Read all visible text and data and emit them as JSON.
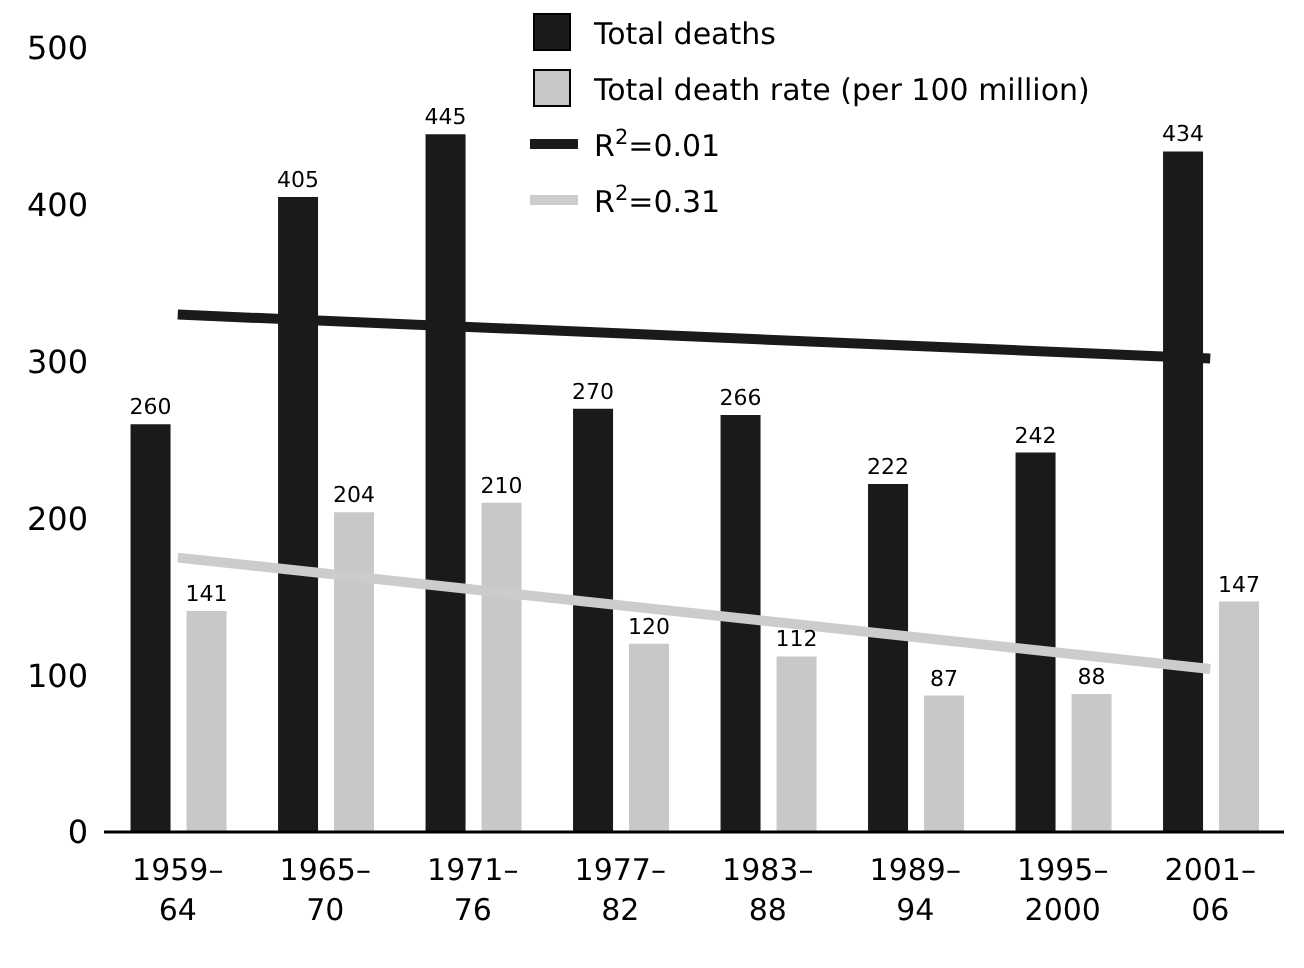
{
  "chart_data": {
    "type": "bar",
    "categories": [
      "1959–64",
      "1965–70",
      "1971–76",
      "1977–82",
      "1983–88",
      "1989–94",
      "1995–2000",
      "2001–06"
    ],
    "series": [
      {
        "name": "Total deaths",
        "color": "#1a1a1a",
        "values": [
          260,
          405,
          445,
          270,
          266,
          222,
          242,
          434
        ],
        "value_labels": [
          "260",
          "405",
          "445",
          "270",
          "266",
          "222",
          "242",
          "434"
        ]
      },
      {
        "name": "Total death rate (per 100 million)",
        "color": "#c8c8c8",
        "values": [
          141,
          204,
          210,
          120,
          112,
          87,
          88,
          147
        ],
        "value_labels": [
          "141",
          "204",
          "210",
          "120",
          "112",
          "87",
          "88",
          "147"
        ]
      },
      {
        "name": "R$^{2}$=0.01",
        "type": "line",
        "color": "#1a1a1a",
        "values": [
          330,
          null,
          null,
          null,
          null,
          null,
          null,
          302
        ]
      },
      {
        "name": "R$^{2}$=0.31",
        "type": "line",
        "color": "#cccccc",
        "values": [
          175,
          null,
          null,
          null,
          null,
          null,
          null,
          104
        ]
      }
    ],
    "ylim": [
      0,
      500
    ],
    "yticks": [
      0,
      100,
      200,
      300,
      400,
      500
    ],
    "grid": false,
    "legend": "top",
    "marker": "none",
    "line_style": "solid"
  }
}
